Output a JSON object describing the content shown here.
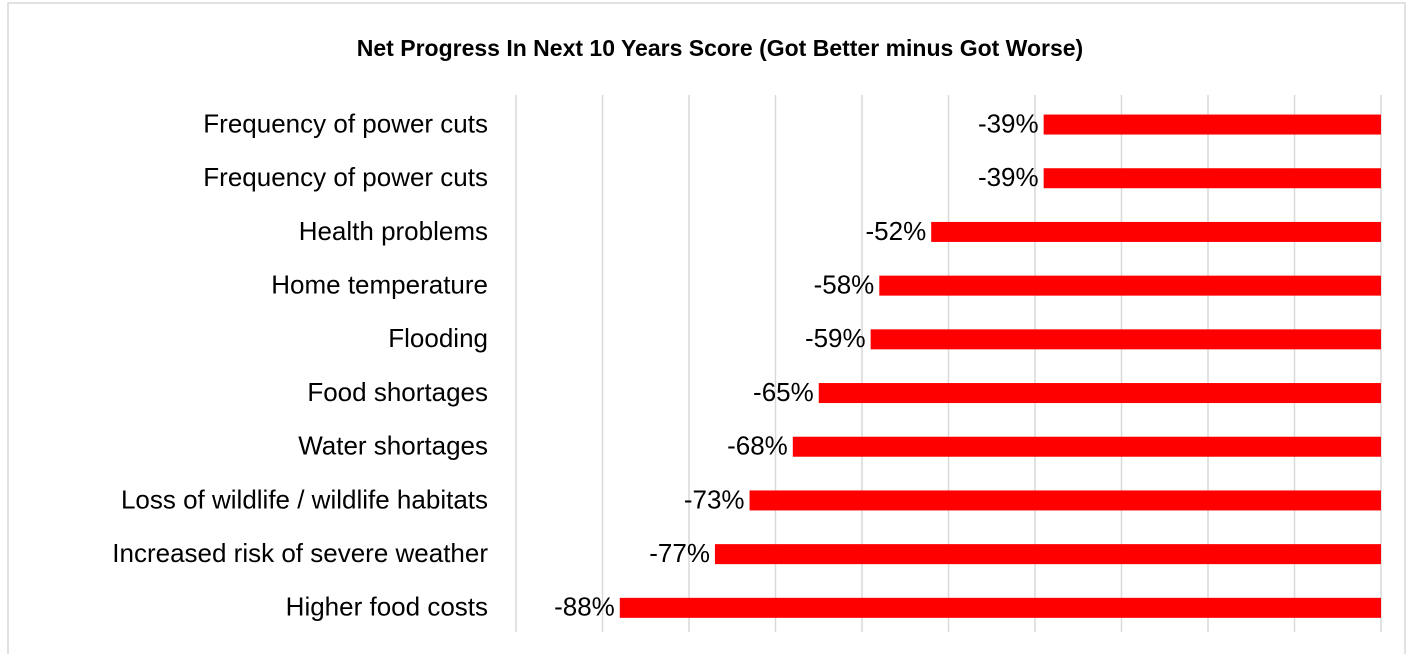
{
  "chart_data": {
    "type": "hbar",
    "title": "Net Progress In Next 10 Years Score (Got Better minus Got Worse)",
    "categories": [
      "Frequency of power cuts",
      "Frequency of power cuts",
      "Health problems",
      "Home temperature",
      "Flooding",
      "Food shortages",
      "Water shortages",
      "Loss of wildlife / wildlife habitats",
      "Increased risk of severe weather",
      "Higher food costs"
    ],
    "values": [
      -39,
      -39,
      -52,
      -58,
      -59,
      -65,
      -68,
      -73,
      -77,
      -88
    ],
    "value_labels": [
      "-39%",
      "-39%",
      "-52%",
      "-58%",
      "-59%",
      "-65%",
      "-68%",
      "-73%",
      "-77%",
      "-88%"
    ],
    "color": "#ff0000",
    "xlim": [
      -100,
      0
    ],
    "xticks": [
      -100,
      -90,
      -80,
      -70,
      -60,
      -50,
      -40,
      -30,
      -20,
      -10,
      0
    ],
    "grid": true
  }
}
